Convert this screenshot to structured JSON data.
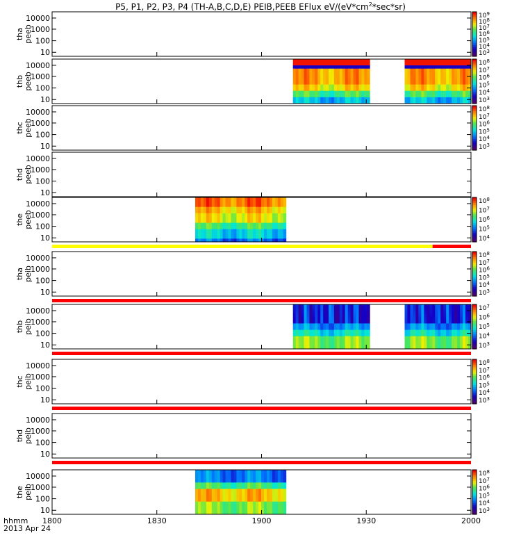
{
  "title": {
    "prefix": "P5, P1, P2, P3, P4 (TH-A,B,C,D,E) PEIB,PEEB EFlux eV/(eV*cm",
    "sup": "2",
    "suffix": "*sec*sr)"
  },
  "chart_data": {
    "type": "heatmap",
    "colorscale": "rainbow (purple-blue-cyan-green-yellow-red)",
    "scale": "log",
    "x_time_range": [
      "18:00",
      "20:00"
    ],
    "x_tick_labels": [
      "1800",
      "1830",
      "1900",
      "1930",
      "2000"
    ],
    "x_axis_label": "hhmm",
    "date_label": "2013 Apr 24",
    "y_tick_labels": [
      "10",
      "100",
      "1000",
      "10000"
    ],
    "panels": [
      {
        "probe": "tha",
        "species": "peeb",
        "colorbar": [
          "10",
          "10",
          "10",
          "10",
          "10",
          "10",
          "10"
        ],
        "colorbar_exp": [
          "9",
          "8",
          "7",
          "6",
          "5",
          "4",
          "3"
        ],
        "segments": [],
        "flag_bar": null
      },
      {
        "probe": "thb",
        "species": "peeb",
        "colorbar": [
          "10",
          "10",
          "10",
          "10",
          "10",
          "10"
        ],
        "colorbar_exp": [
          "8",
          "7",
          "6",
          "5",
          "4",
          "3"
        ],
        "segments": [
          {
            "start": "19:09",
            "end": "19:31",
            "style": "peeb_b"
          },
          {
            "start": "19:41",
            "end": "20:00",
            "style": "peeb_b"
          }
        ],
        "flag_bar": null
      },
      {
        "probe": "thc",
        "species": "peeb",
        "colorbar": [
          "10",
          "10",
          "10",
          "10",
          "10",
          "10"
        ],
        "colorbar_exp": [
          "8",
          "7",
          "6",
          "5",
          "4",
          "3"
        ],
        "segments": [],
        "flag_bar": null
      },
      {
        "probe": "thd",
        "species": "peeb",
        "colorbar": [],
        "colorbar_exp": [],
        "segments": [],
        "flag_bar": null
      },
      {
        "probe": "the",
        "species": "peeb",
        "colorbar": [
          "10",
          "10",
          "10",
          "10",
          "10"
        ],
        "colorbar_exp": [
          "8",
          "7",
          "6",
          "5",
          "4"
        ],
        "segments": [
          {
            "start": "18:41",
            "end": "19:07",
            "style": "peeb_e"
          }
        ],
        "flag_bar": [
          {
            "start": "18:00",
            "end": "19:49",
            "color": "#ffff00"
          },
          {
            "start": "19:49",
            "end": "20:00",
            "color": "#ff0000"
          }
        ]
      },
      {
        "probe": "tha",
        "species": "peib",
        "colorbar": [
          "10",
          "10",
          "10",
          "10",
          "10",
          "10"
        ],
        "colorbar_exp": [
          "8",
          "7",
          "6",
          "5",
          "4",
          "3"
        ],
        "segments": [],
        "flag_bar": [
          {
            "start": "18:00",
            "end": "20:00",
            "color": "#ff0000"
          }
        ]
      },
      {
        "probe": "thb",
        "species": "peib",
        "colorbar": [
          "10",
          "10",
          "10",
          "10",
          "10"
        ],
        "colorbar_exp": [
          "7",
          "6",
          "5",
          "4",
          "3"
        ],
        "segments": [
          {
            "start": "19:09",
            "end": "19:31",
            "style": "peib_b"
          },
          {
            "start": "19:41",
            "end": "20:00",
            "style": "peib_b"
          }
        ],
        "flag_bar": [
          {
            "start": "18:00",
            "end": "20:00",
            "color": "#ff0000"
          }
        ]
      },
      {
        "probe": "thc",
        "species": "peib",
        "colorbar": [
          "10",
          "10",
          "10",
          "10",
          "10",
          "10"
        ],
        "colorbar_exp": [
          "8",
          "7",
          "6",
          "5",
          "4",
          "3"
        ],
        "segments": [],
        "flag_bar": [
          {
            "start": "18:00",
            "end": "20:00",
            "color": "#ff0000"
          }
        ]
      },
      {
        "probe": "thd",
        "species": "peib",
        "colorbar": [],
        "colorbar_exp": [],
        "segments": [],
        "flag_bar": [
          {
            "start": "18:00",
            "end": "20:00",
            "color": "#ff0000"
          }
        ]
      },
      {
        "probe": "the",
        "species": "peib",
        "colorbar": [
          "10",
          "10",
          "10",
          "10",
          "10",
          "10"
        ],
        "colorbar_exp": [
          "8",
          "7",
          "6",
          "5",
          "4",
          "3"
        ],
        "segments": [
          {
            "start": "18:41",
            "end": "19:07",
            "style": "peib_e"
          }
        ],
        "flag_bar": null
      }
    ]
  }
}
